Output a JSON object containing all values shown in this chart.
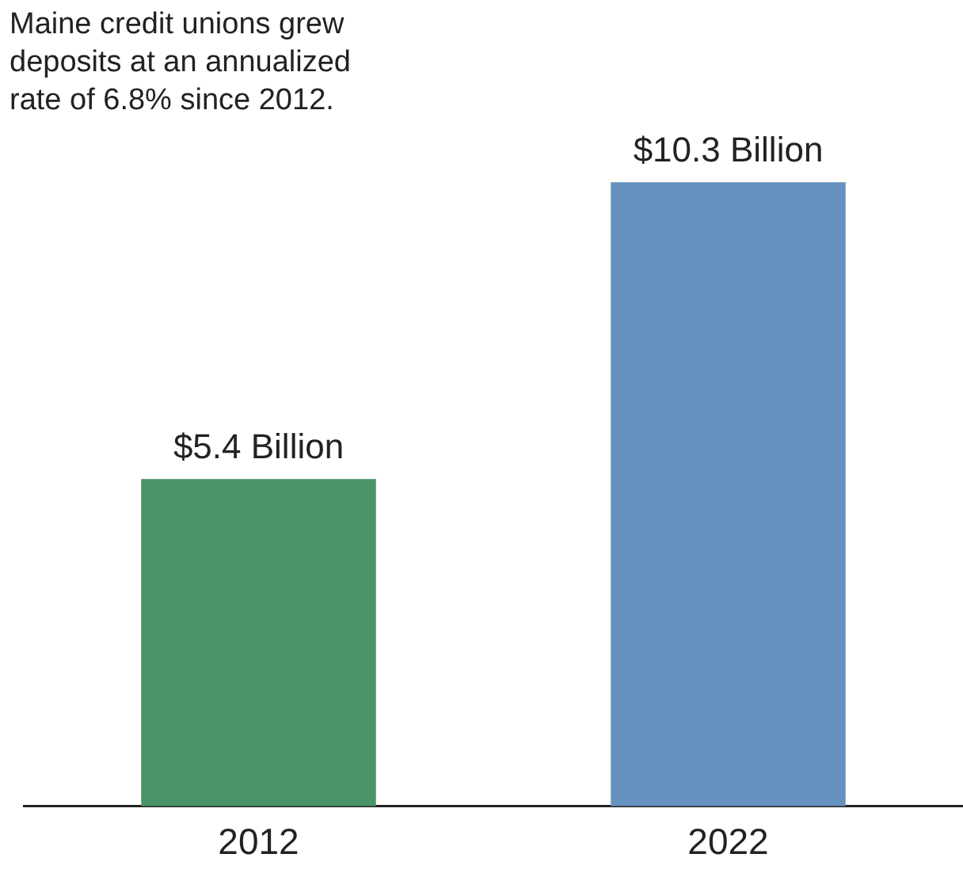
{
  "chart_data": {
    "type": "bar",
    "categories": [
      "2012",
      "2022"
    ],
    "values": [
      5.4,
      10.3
    ],
    "colors": [
      "#4a9468",
      "#6592bf"
    ],
    "value_labels": [
      "$5.4 Billion",
      "$10.3 Billion"
    ],
    "annotations": [
      "Maine credit unions grew deposits at an annualized rate of 6.8% since 2012."
    ]
  }
}
